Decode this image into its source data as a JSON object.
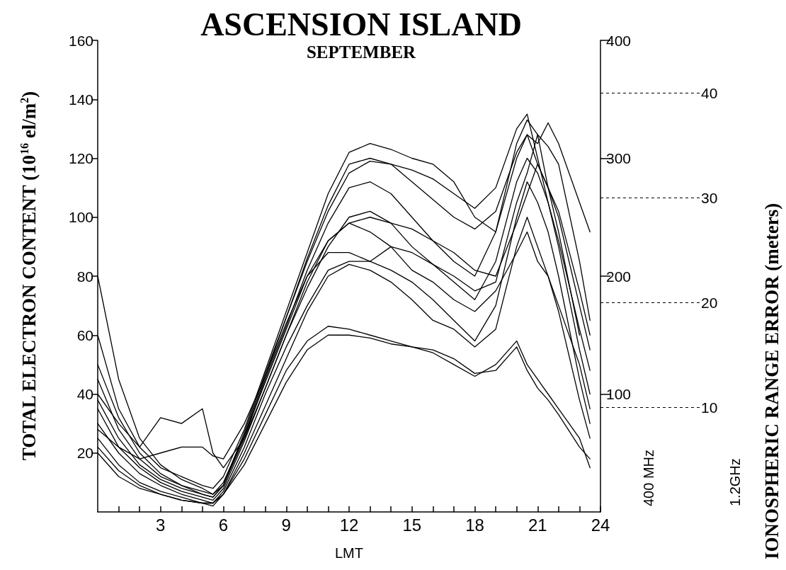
{
  "chart_data": {
    "type": "line",
    "title": "ASCENSION ISLAND",
    "subtitle": "SEPTEMBER",
    "xlabel": "LMT",
    "ylabel": "TOTAL ELECTRON CONTENT (10$^{16}$ el/m$^{2}$)",
    "y2label": "400 MHz",
    "y3label": "1.2GHz",
    "annotations": [
      "IONOSPHERIC RANGE ERROR (meters)"
    ],
    "xlim": [
      0,
      24
    ],
    "xticks": [
      {
        "value": 1,
        "label": null
      },
      {
        "value": 2,
        "label": null
      },
      3,
      {
        "value": 4,
        "label": null
      },
      {
        "value": 5,
        "label": null
      },
      6,
      {
        "value": 7,
        "label": null
      },
      {
        "value": 8,
        "label": null
      },
      9,
      {
        "value": 10,
        "label": null
      },
      {
        "value": 11,
        "label": null
      },
      12,
      {
        "value": 13,
        "label": null
      },
      {
        "value": 14,
        "label": null
      },
      15,
      {
        "value": 16,
        "label": null
      },
      {
        "value": 17,
        "label": null
      },
      18,
      {
        "value": 19,
        "label": null
      },
      {
        "value": 20,
        "label": null
      },
      21,
      {
        "value": 22,
        "label": null
      },
      {
        "value": 23,
        "label": null
      },
      24
    ],
    "ylim": [
      0,
      160
    ],
    "yticks": [
      20,
      40,
      60,
      80,
      100,
      120,
      140,
      160
    ],
    "y2lim": [
      0,
      400
    ],
    "y2ticks": [
      100,
      200,
      300,
      400
    ],
    "y3lim": [
      0,
      45
    ],
    "y3ticks": [
      10,
      20,
      30,
      40
    ],
    "grid": false,
    "legend": false,
    "marker": "none",
    "line_style": "solid",
    "x": [
      0,
      1,
      2,
      3,
      4,
      5,
      5.5,
      6,
      7,
      8,
      9,
      10,
      11,
      12,
      13,
      14,
      15,
      16,
      17,
      18,
      19,
      20,
      20.5,
      21,
      21.5,
      22,
      23,
      23.5
    ],
    "series": [
      {
        "color": "#000000",
        "values": [
          60,
          35,
          22,
          15,
          12,
          9,
          8,
          12,
          28,
          48,
          68,
          88,
          108,
          122,
          125,
          123,
          120,
          118,
          112,
          100,
          95,
          125,
          133,
          128,
          110,
          95,
          60,
          null
        ]
      },
      {
        "color": "#000000",
        "values": [
          45,
          28,
          18,
          12,
          9,
          7,
          6,
          10,
          26,
          46,
          66,
          85,
          102,
          115,
          119,
          118,
          116,
          113,
          108,
          103,
          110,
          130,
          135,
          120,
          105,
          90,
          55,
          40
        ]
      },
      {
        "color": "#000000",
        "values": [
          80,
          45,
          25,
          16,
          11,
          8,
          6,
          9,
          25,
          45,
          63,
          82,
          98,
          110,
          112,
          108,
          100,
          92,
          85,
          80,
          95,
          120,
          128,
          125,
          132,
          125,
          105,
          95
        ]
      },
      {
        "color": "#000000",
        "values": [
          35,
          22,
          15,
          10,
          7,
          5,
          4,
          8,
          24,
          42,
          60,
          76,
          90,
          100,
          102,
          98,
          90,
          84,
          78,
          72,
          85,
          112,
          120,
          115,
          105,
          92,
          62,
          48
        ]
      },
      {
        "color": "#000000",
        "values": [
          30,
          20,
          13,
          9,
          6,
          4,
          3,
          7,
          22,
          40,
          56,
          70,
          82,
          85,
          85,
          82,
          78,
          72,
          65,
          58,
          70,
          100,
          112,
          105,
          95,
          80,
          45,
          30
        ]
      },
      {
        "color": "#000000",
        "values": [
          25,
          16,
          10,
          7,
          5,
          3,
          2,
          6,
          20,
          36,
          52,
          68,
          80,
          84,
          82,
          78,
          72,
          65,
          62,
          56,
          62,
          90,
          100,
          90,
          80,
          68,
          38,
          25
        ]
      },
      {
        "color": "#000000",
        "values": [
          22,
          14,
          9,
          6,
          4,
          3,
          3,
          6,
          18,
          33,
          48,
          58,
          63,
          62,
          60,
          58,
          56,
          54,
          50,
          46,
          50,
          58,
          50,
          45,
          40,
          35,
          25,
          15
        ]
      },
      {
        "color": "#000000",
        "values": [
          20,
          12,
          8,
          6,
          4,
          3,
          3,
          6,
          16,
          30,
          44,
          55,
          60,
          60,
          59,
          57,
          56,
          55,
          52,
          47,
          48,
          56,
          48,
          42,
          38,
          33,
          22,
          18
        ]
      },
      {
        "color": "#000000",
        "values": [
          40,
          30,
          22,
          32,
          30,
          35,
          20,
          15,
          25,
          42,
          60,
          78,
          92,
          98,
          95,
          90,
          82,
          78,
          72,
          68,
          75,
          88,
          95,
          85,
          80,
          70,
          50,
          35
        ]
      },
      {
        "color": "#000000",
        "values": [
          28,
          22,
          18,
          20,
          22,
          22,
          19,
          18,
          30,
          46,
          64,
          80,
          92,
          98,
          100,
          98,
          96,
          92,
          88,
          82,
          80,
          98,
          108,
          118,
          110,
          100,
          70,
          55
        ]
      },
      {
        "color": "#000000",
        "values": [
          38,
          25,
          16,
          11,
          8,
          6,
          5,
          9,
          26,
          44,
          62,
          80,
          88,
          88,
          85,
          90,
          88,
          84,
          80,
          75,
          78,
          105,
          115,
          128,
          124,
          118,
          85,
          65
        ]
      },
      {
        "color": "#000000",
        "values": [
          50,
          32,
          20,
          13,
          9,
          6,
          5,
          9,
          27,
          47,
          66,
          86,
          104,
          118,
          120,
          118,
          112,
          106,
          100,
          96,
          102,
          122,
          128,
          118,
          110,
          102,
          75,
          60
        ]
      }
    ]
  }
}
